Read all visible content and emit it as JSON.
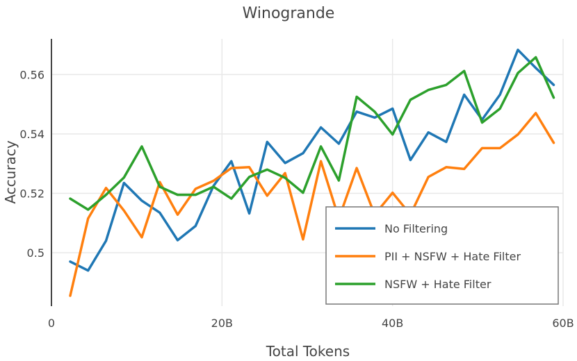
{
  "chart_data": {
    "type": "line",
    "title": "Winogrande",
    "xlabel": "Total Tokens",
    "ylabel": "Accuracy",
    "xlim": [
      0,
      60
    ],
    "ylim": [
      0.482,
      0.572
    ],
    "grid": true,
    "legend_position": "bottom-right",
    "x_ticks": [
      {
        "value": 0,
        "label": "0"
      },
      {
        "value": 20,
        "label": "20B"
      },
      {
        "value": 40,
        "label": "40B"
      },
      {
        "value": 60,
        "label": "60B"
      }
    ],
    "y_ticks": [
      {
        "value": 0.5,
        "label": "0.5"
      },
      {
        "value": 0.52,
        "label": "0.52"
      },
      {
        "value": 0.54,
        "label": "0.54"
      },
      {
        "value": 0.56,
        "label": "0.56"
      }
    ],
    "x": [
      2.2,
      4.3,
      6.4,
      8.5,
      10.6,
      12.7,
      14.8,
      16.9,
      19.0,
      21.1,
      23.2,
      25.3,
      27.4,
      29.5,
      31.6,
      33.7,
      35.8,
      37.9,
      40.0,
      42.1,
      44.2,
      46.3,
      48.4,
      50.5,
      52.6,
      54.7,
      56.8,
      58.9
    ],
    "series": [
      {
        "name": "No Filtering",
        "color": "#1f77b4",
        "values": [
          0.497,
          0.494,
          0.504,
          0.5235,
          0.5175,
          0.5135,
          0.5042,
          0.509,
          0.5225,
          0.5308,
          0.5132,
          0.5373,
          0.5302,
          0.5335,
          0.5422,
          0.5367,
          0.5475,
          0.5455,
          0.5485,
          0.5312,
          0.5405,
          0.5373,
          0.5532,
          0.5448,
          0.5532,
          0.5683,
          0.5622,
          0.5565
        ]
      },
      {
        "name": "PII + NSFW + Hate Filter",
        "color": "#ff7f0e",
        "values": [
          0.4855,
          0.5115,
          0.5218,
          0.5142,
          0.5052,
          0.5238,
          0.5128,
          0.5215,
          0.5242,
          0.5285,
          0.5288,
          0.5192,
          0.5268,
          0.5045,
          0.5308,
          0.5115,
          0.5285,
          0.5128,
          0.5202,
          0.5128,
          0.5255,
          0.5288,
          0.5282,
          0.5352,
          0.5352,
          0.5398,
          0.547,
          0.537
        ]
      },
      {
        "name": "NSFW + Hate Filter",
        "color": "#2ca02c",
        "values": [
          0.5182,
          0.5145,
          0.5195,
          0.5253,
          0.5358,
          0.5222,
          0.5195,
          0.5195,
          0.5222,
          0.5182,
          0.5255,
          0.528,
          0.5252,
          0.5202,
          0.5358,
          0.5243,
          0.5525,
          0.5475,
          0.5398,
          0.5515,
          0.5548,
          0.5565,
          0.5612,
          0.5438,
          0.5485,
          0.5605,
          0.5658,
          0.5522
        ]
      }
    ]
  }
}
